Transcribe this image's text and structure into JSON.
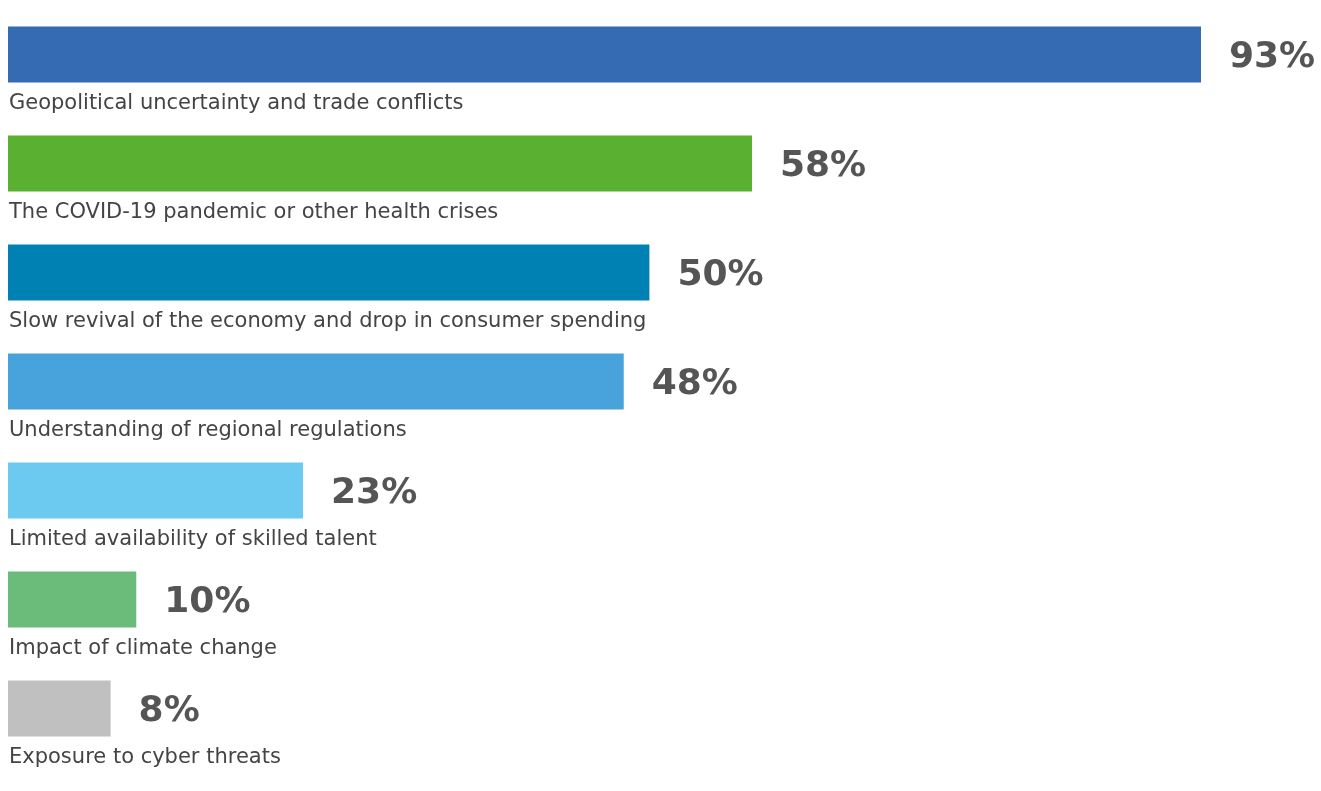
{
  "chart_data": {
    "type": "bar",
    "orientation": "horizontal",
    "categories": [
      "Geopolitical uncertainty and trade conflicts",
      "The COVID-19 pandemic or other health crises",
      "Slow revival of the economy and drop in consumer spending",
      "Understanding of regional regulations",
      "Limited availability of skilled talent",
      "Impact of climate change",
      "Exposure to cyber threats"
    ],
    "values": [
      93,
      58,
      50,
      48,
      23,
      10,
      8
    ],
    "value_labels": [
      "93%",
      "58%",
      "50%",
      "48%",
      "23%",
      "10%",
      "8%"
    ],
    "colors": [
      "#356bb3",
      "#5ab031",
      "#0081b4",
      "#48a3dc",
      "#6ccaf0",
      "#6bbb7a",
      "#c0c0c0"
    ],
    "grid": false
  }
}
